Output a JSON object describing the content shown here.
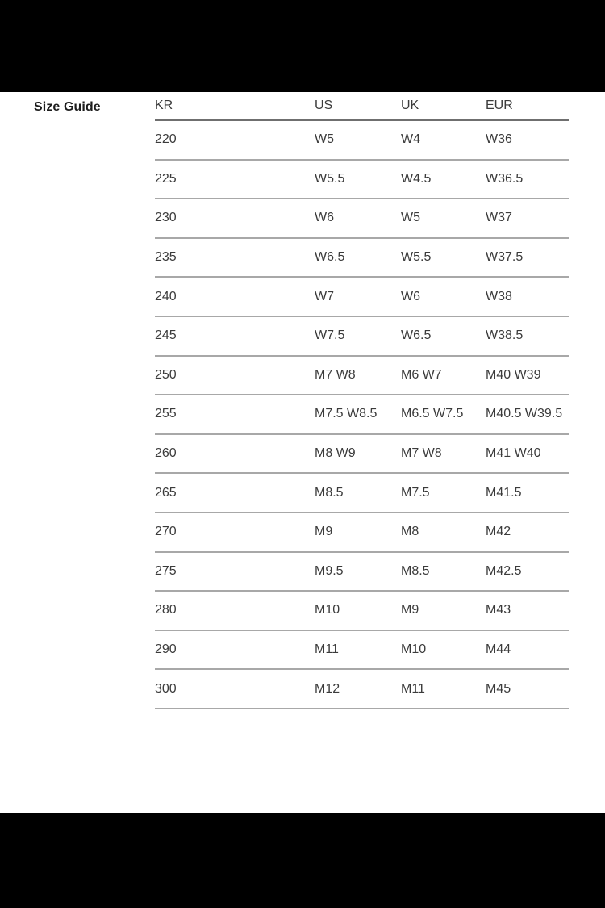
{
  "page": {
    "section_label": "Size Guide"
  },
  "size_table": {
    "columns": [
      "KR",
      "US",
      "UK",
      "EUR"
    ],
    "rows": [
      [
        "220",
        "W5",
        "W4",
        "W36"
      ],
      [
        "225",
        "W5.5",
        "W4.5",
        "W36.5"
      ],
      [
        "230",
        "W6",
        "W5",
        "W37"
      ],
      [
        "235",
        "W6.5",
        "W5.5",
        "W37.5"
      ],
      [
        "240",
        "W7",
        "W6",
        "W38"
      ],
      [
        "245",
        "W7.5",
        "W6.5",
        "W38.5"
      ],
      [
        "250",
        "M7 W8",
        "M6 W7",
        "M40 W39"
      ],
      [
        "255",
        "M7.5 W8.5",
        "M6.5 W7.5",
        "M40.5 W39.5"
      ],
      [
        "260",
        "M8 W9",
        "M7 W8",
        "M41 W40"
      ],
      [
        "265",
        "M8.5",
        "M7.5",
        "M41.5"
      ],
      [
        "270",
        "M9",
        "M8",
        "M42"
      ],
      [
        "275",
        "M9.5",
        "M8.5",
        "M42.5"
      ],
      [
        "280",
        "M10",
        "M9",
        "M43"
      ],
      [
        "290",
        "M11",
        "M10",
        "M44"
      ],
      [
        "300",
        "M12",
        "M11",
        "M45"
      ]
    ]
  },
  "colors": {
    "letterbox": "#000000",
    "background": "#ffffff",
    "text": "#3b3b3b",
    "header_rule": "#6f6f6f",
    "row_rule": "#a8a8a8"
  }
}
